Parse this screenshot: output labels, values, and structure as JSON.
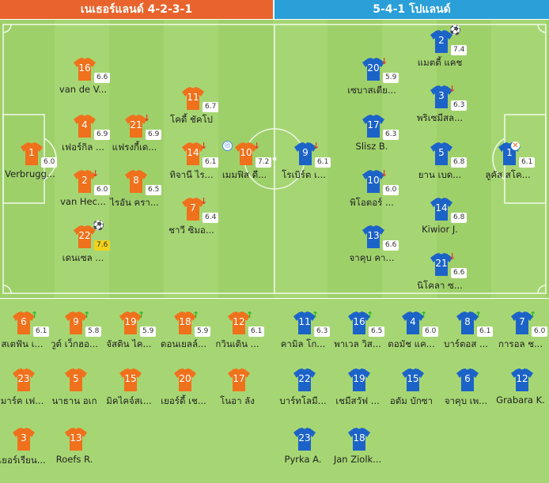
{
  "header": {
    "home_title": "เนเธอร์แลนด์ 4-2-3-1",
    "away_title": "5-4-1 โปแลนด์"
  },
  "colors": {
    "home": "#e8642c",
    "away": "#2a9fd8",
    "home_jersey": "#f0711c",
    "away_jersey": "#1c63c8",
    "pitch": "#a6d673"
  },
  "home_lineup": [
    {
      "num": "16",
      "rating": "6.6",
      "name": "van de V...",
      "event": ""
    },
    {
      "num": "4",
      "rating": "6.9",
      "name": "เฟอร์กิล ...",
      "event": ""
    },
    {
      "num": "21",
      "rating": "6.9",
      "name": "แฟรงกี้เด...",
      "event": "sub-out"
    },
    {
      "num": "11",
      "rating": "6.7",
      "name": "โคดี้ ชัคโป",
      "event": ""
    },
    {
      "num": "1",
      "rating": "6.0",
      "name": "Verbrugg...",
      "event": ""
    },
    {
      "num": "14",
      "rating": "6.1",
      "name": "ทิจานี ไร...",
      "event": "sub-out"
    },
    {
      "num": "10",
      "rating": "7.2",
      "name": "เมมฟิส ดี...",
      "event": "sub-out-assist"
    },
    {
      "num": "2",
      "rating": "6.0",
      "name": "van Hec...",
      "event": "sub-out"
    },
    {
      "num": "8",
      "rating": "6.5",
      "name": "ไรอัน ครา...",
      "event": ""
    },
    {
      "num": "7",
      "rating": "6.4",
      "name": "ชาวี ซิมอ...",
      "event": "sub-out"
    },
    {
      "num": "22",
      "rating": "7.6",
      "name": "เดนเซล ...",
      "event": "goal",
      "highlight": true
    }
  ],
  "away_lineup": [
    {
      "num": "2",
      "rating": "7.4",
      "name": "แมตตี้ แคช",
      "event": "goal"
    },
    {
      "num": "20",
      "rating": "5.9",
      "name": "เซบาสเตีย...",
      "event": "sub-out"
    },
    {
      "num": "3",
      "rating": "6.3",
      "name": "พริเซมีสล...",
      "event": "sub-out"
    },
    {
      "num": "17",
      "rating": "6.3",
      "name": "Slisz B.",
      "event": ""
    },
    {
      "num": "9",
      "rating": "6.1",
      "name": "โรเบิร์ต เ...",
      "event": "sub-out"
    },
    {
      "num": "5",
      "rating": "6.8",
      "name": "ยาน เบด...",
      "event": ""
    },
    {
      "num": "1",
      "rating": "6.1",
      "name": "ลูคัส สโค...",
      "event": "injury"
    },
    {
      "num": "10",
      "rating": "6.0",
      "name": "พิโอตอร์ ...",
      "event": "sub-out"
    },
    {
      "num": "14",
      "rating": "6.8",
      "name": "Kiwior J.",
      "event": ""
    },
    {
      "num": "13",
      "rating": "6.6",
      "name": "จาคุบ คา...",
      "event": ""
    },
    {
      "num": "21",
      "rating": "6.6",
      "name": "นิโคลา ซ...",
      "event": "sub-out"
    }
  ],
  "home_bench": [
    {
      "num": "6",
      "rating": "6.1",
      "name": "สเตฟัน เ...",
      "event": "sub-in"
    },
    {
      "num": "9",
      "rating": "5.8",
      "name": "วูต์ เว็กฮอ...",
      "event": "sub-in"
    },
    {
      "num": "19",
      "rating": "5.9",
      "name": "จัสติน ไค...",
      "event": "sub-in"
    },
    {
      "num": "18",
      "rating": "5.9",
      "name": "ดอนเยลล์...",
      "event": "sub-in"
    },
    {
      "num": "12",
      "rating": "6.1",
      "name": "กวินเติน ...",
      "event": "sub-in"
    },
    {
      "num": "23",
      "rating": "",
      "name": "มาร์ค เฟ...",
      "event": ""
    },
    {
      "num": "5",
      "rating": "",
      "name": "นาธาน อเก",
      "event": ""
    },
    {
      "num": "15",
      "rating": "",
      "name": "มิคไคจ์สเ...",
      "event": ""
    },
    {
      "num": "20",
      "rating": "",
      "name": "เยอร์ดี้ เช...",
      "event": ""
    },
    {
      "num": "17",
      "rating": "",
      "name": "โนอา ลัง",
      "event": ""
    },
    {
      "num": "3",
      "rating": "",
      "name": "เยอร์เรียน...",
      "event": ""
    },
    {
      "num": "13",
      "rating": "",
      "name": "Roefs R.",
      "event": ""
    }
  ],
  "away_bench": [
    {
      "num": "11",
      "rating": "6.3",
      "name": "คามิล โก...",
      "event": "sub-in"
    },
    {
      "num": "16",
      "rating": "6.5",
      "name": "พาเวล วิส...",
      "event": "sub-in"
    },
    {
      "num": "4",
      "rating": "6.0",
      "name": "ตอมัช แค...",
      "event": "sub-in"
    },
    {
      "num": "8",
      "rating": "6.1",
      "name": "บาร์ตอส ...",
      "event": "sub-in"
    },
    {
      "num": "7",
      "rating": "6.0",
      "name": "การอล ช...",
      "event": "sub-in"
    },
    {
      "num": "22",
      "rating": "",
      "name": "บาร์ทโลมี...",
      "event": ""
    },
    {
      "num": "19",
      "rating": "",
      "name": "เชมีสวัฟ ...",
      "event": ""
    },
    {
      "num": "15",
      "rating": "",
      "name": "อดัม บักซา",
      "event": ""
    },
    {
      "num": "6",
      "rating": "",
      "name": "จาคุบ เพ...",
      "event": ""
    },
    {
      "num": "12",
      "rating": "",
      "name": "Grabara K.",
      "event": ""
    },
    {
      "num": "23",
      "rating": "",
      "name": "Pyrka A.",
      "event": ""
    },
    {
      "num": "18",
      "rating": "",
      "name": "Jan Ziolk...",
      "event": ""
    }
  ]
}
